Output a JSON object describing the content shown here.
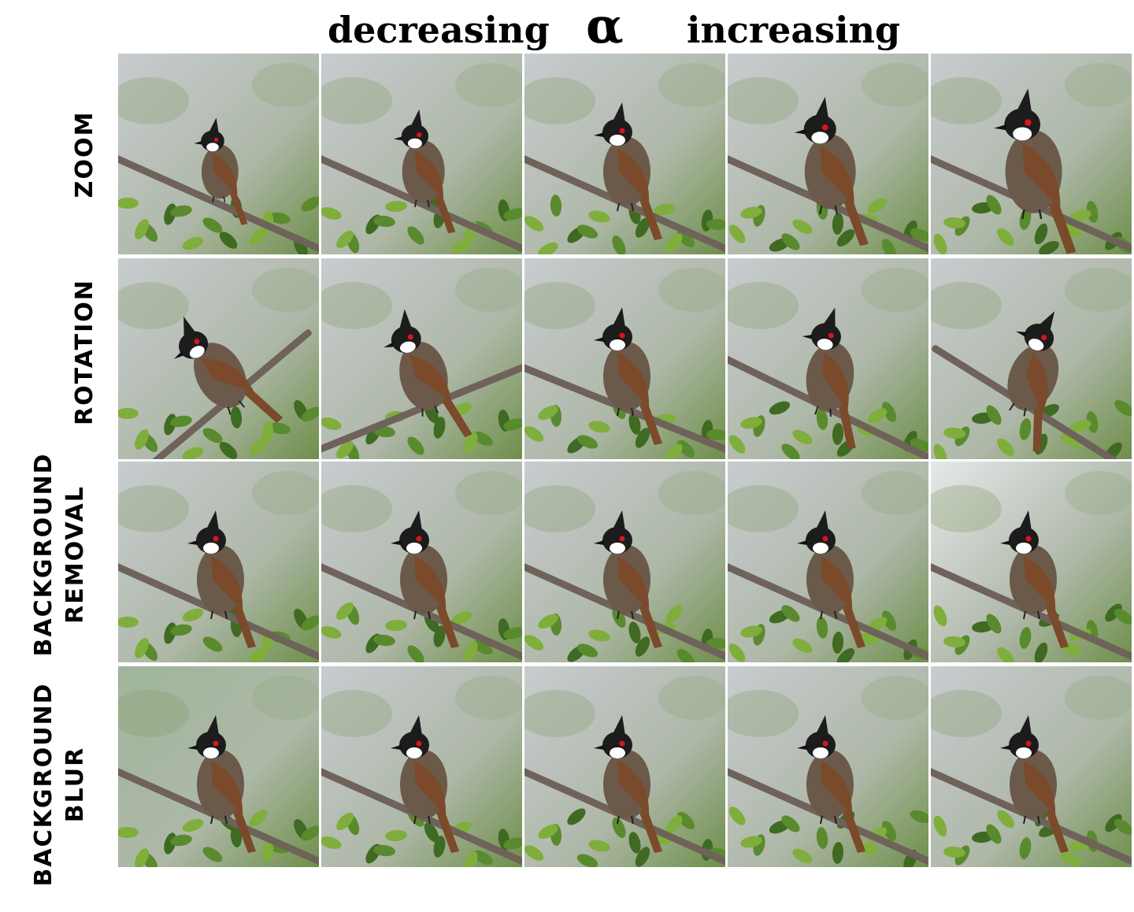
{
  "header": {
    "left_text": "decreasing",
    "symbol": "α",
    "right_text": "increasing"
  },
  "row_labels": {
    "zoom": "ZOOM",
    "rotation": "ROTATION",
    "bg_removal_line1": "BACKGROUND",
    "bg_removal_line2": "REMOVAL",
    "bg_blur_line1": "BACKGROUND",
    "bg_blur_line2": "BLUR"
  },
  "colors": {
    "bird_body": "#6b5a4a",
    "bird_wing": "#7a4a2a",
    "bird_head": "#1c1c1c",
    "cheek": "#ffffff",
    "red_patch": "#d8141e",
    "branch": "#6e625a",
    "foliage": "#5a8a2e",
    "sky": "#c8ccd0"
  }
}
